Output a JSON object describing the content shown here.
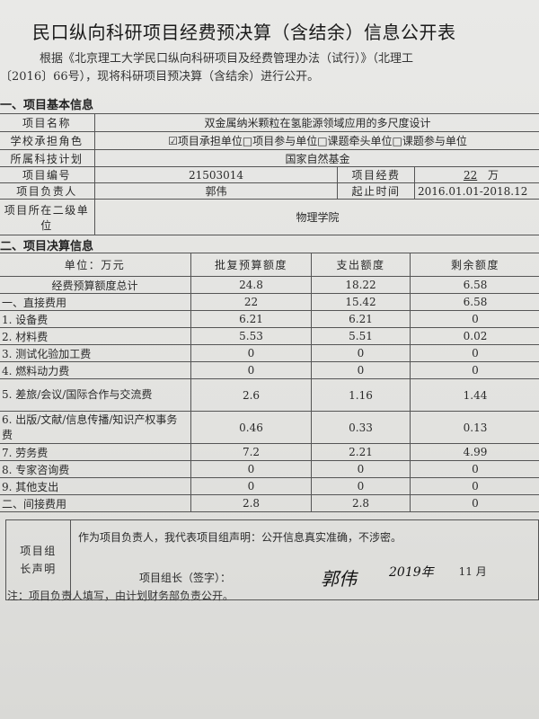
{
  "title": "民口纵向科研项目经费预决算（含结余）信息公开表",
  "intro": {
    "line1": "根据《北京理工大学民口纵向科研项目及经费管理办法（试行）》（北理工",
    "line2": "〔2016〕66号），现将科研项目预决算（含结余）进行公开。"
  },
  "basic_info": {
    "section_title": "一、项目基本信息",
    "project_name_label": "项目名称",
    "project_name": "双金属纳米颗粒在氢能源领域应用的多尺度设计",
    "role_label": "学校承担角色",
    "role_options": "☑项目承担单位□项目参与单位□课题牵头单位□课题参与单位",
    "plan_label": "所属科技计划",
    "plan": "国家自然基金",
    "number_label": "项目编号",
    "number": "21503014",
    "funds_label": "项目经费",
    "funds_value": "22",
    "funds_unit": "万",
    "leader_label": "项目负责人",
    "leader": "郭伟",
    "period_label": "起止时间",
    "period": "2016.01.01-2018.12",
    "dept_label": "项目所在二级单位",
    "dept": "物理学院"
  },
  "budget": {
    "section_title": "二、项目决算信息",
    "headers": [
      "单位：万元",
      "批复预算额度",
      "支出额度",
      "剩余额度"
    ],
    "rows": [
      {
        "item": "经费预算额度总计",
        "approved": "24.8",
        "spent": "18.22",
        "remaining": "6.58"
      },
      {
        "item": "一、直接费用",
        "approved": "22",
        "spent": "15.42",
        "remaining": "6.58"
      },
      {
        "item": "1. 设备费",
        "approved": "6.21",
        "spent": "6.21",
        "remaining": "0"
      },
      {
        "item": "2. 材料费",
        "approved": "5.53",
        "spent": "5.51",
        "remaining": "0.02"
      },
      {
        "item": "3. 测试化验加工费",
        "approved": "0",
        "spent": "0",
        "remaining": "0"
      },
      {
        "item": "4. 燃料动力费",
        "approved": "0",
        "spent": "0",
        "remaining": "0"
      },
      {
        "item": "5. 差旅/会议/国际合作与交流费",
        "approved": "2.6",
        "spent": "1.16",
        "remaining": "1.44"
      },
      {
        "item": "6. 出版/文献/信息传播/知识产权事务费",
        "approved": "0.46",
        "spent": "0.33",
        "remaining": "0.13"
      },
      {
        "item": "7. 劳务费",
        "approved": "7.2",
        "spent": "2.21",
        "remaining": "4.99"
      },
      {
        "item": "8. 专家咨询费",
        "approved": "0",
        "spent": "0",
        "remaining": "0"
      },
      {
        "item": "9. 其他支出",
        "approved": "0",
        "spent": "0",
        "remaining": "0"
      },
      {
        "item": "二、间接费用",
        "approved": "2.8",
        "spent": "2.8",
        "remaining": "0"
      }
    ]
  },
  "declaration": {
    "label": "项目组长声明",
    "statement": "作为项目负责人，我代表项目组声明：公开信息真实准确，不涉密。",
    "sign_label": "项目组长（签字）：",
    "signature": "郭伟",
    "year": "2019年",
    "month": "11 月"
  },
  "note": "注：项目负责人填写，由计划财务部负责公开。"
}
